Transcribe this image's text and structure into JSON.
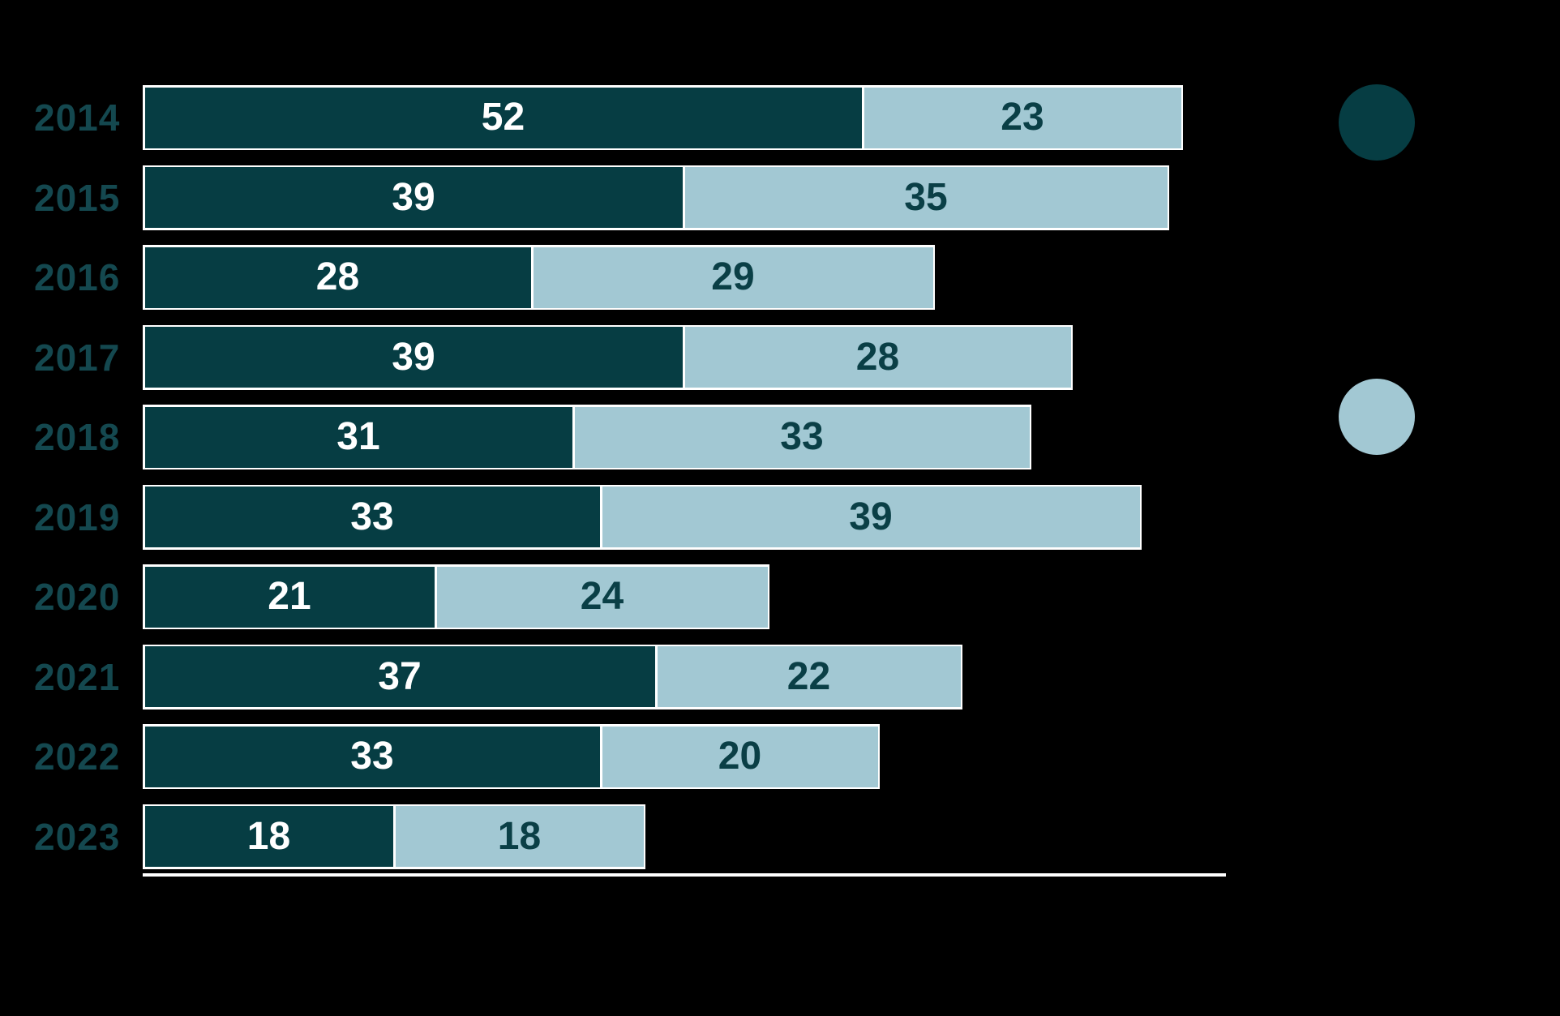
{
  "chart_data": {
    "type": "bar",
    "orientation": "horizontal",
    "stacked": true,
    "title": "",
    "xlabel": "",
    "ylabel": "",
    "categories": [
      "2014",
      "2015",
      "2016",
      "2017",
      "2018",
      "2019",
      "2020",
      "2021",
      "2022",
      "2023"
    ],
    "series": [
      {
        "name": "series-dark",
        "color": "#063D43",
        "label_text_color": "#FFFFFF",
        "values": [
          52,
          39,
          28,
          39,
          31,
          33,
          21,
          37,
          33,
          18
        ]
      },
      {
        "name": "series-light",
        "color": "#A2C8D3",
        "label_text_color": "#0A3F46",
        "values": [
          23,
          35,
          29,
          28,
          33,
          39,
          24,
          22,
          20,
          18
        ]
      }
    ],
    "totals": [
      75,
      74,
      57,
      67,
      64,
      72,
      45,
      59,
      53,
      36
    ],
    "xlim": [
      0,
      78.5
    ],
    "grid": false,
    "axis_line_color": "#FFFFFF",
    "bar_outline_color": "#FFFFFF",
    "legend_position": "right",
    "background_color": "#000000",
    "year_label_color": "#14484F"
  },
  "legend": {
    "swatches": [
      {
        "name": "dark",
        "shape": "circle",
        "color": "#063D43"
      },
      {
        "name": "light",
        "shape": "circle",
        "color": "#A2C8D3"
      }
    ]
  }
}
